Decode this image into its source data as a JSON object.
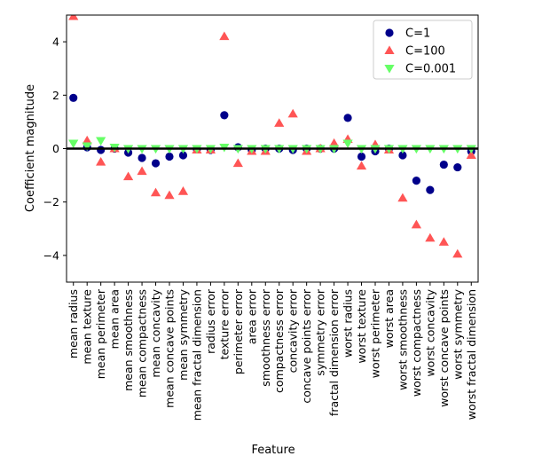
{
  "chart_data": {
    "type": "scatter",
    "title": "",
    "xlabel": "Feature",
    "ylabel": "Coefficient magnitude",
    "ylim": [
      -5,
      5
    ],
    "yticks": [
      4,
      2,
      0,
      -2,
      -4
    ],
    "grid": false,
    "legend_position": "top-right",
    "reference_line": 0,
    "categories": [
      "mean radius",
      "mean texture",
      "mean perimeter",
      "mean area",
      "mean smoothness",
      "mean compactness",
      "mean concavity",
      "mean concave points",
      "mean symmetry",
      "mean fractal dimension",
      "radius error",
      "texture error",
      "perimeter error",
      "area error",
      "smoothness error",
      "compactness error",
      "concavity error",
      "concave points error",
      "symmetry error",
      "fractal dimension error",
      "worst radius",
      "worst texture",
      "worst perimeter",
      "worst area",
      "worst smoothness",
      "worst compactness",
      "worst concavity",
      "worst concave points",
      "worst symmetry",
      "worst fractal dimension"
    ],
    "series": [
      {
        "name": "C=1",
        "marker": "circle",
        "color": "#00008b",
        "values": [
          1.9,
          0.05,
          -0.05,
          0.0,
          -0.15,
          -0.35,
          -0.55,
          -0.3,
          -0.25,
          -0.02,
          -0.05,
          1.25,
          0.05,
          -0.05,
          0.0,
          0.0,
          -0.05,
          0.0,
          0.0,
          0.0,
          1.15,
          -0.3,
          -0.1,
          0.0,
          -0.25,
          -1.2,
          -1.55,
          -0.6,
          -0.7,
          -0.1
        ]
      },
      {
        "name": "C=100",
        "marker": "triangle-up",
        "color": "#ff5555",
        "values": [
          4.95,
          0.3,
          -0.5,
          0.0,
          -1.05,
          -0.85,
          -1.65,
          -1.75,
          -1.6,
          -0.05,
          -0.05,
          4.2,
          -0.55,
          -0.1,
          -0.1,
          0.95,
          1.3,
          -0.1,
          0.0,
          0.2,
          0.35,
          -0.65,
          0.15,
          -0.05,
          -1.85,
          -2.85,
          -3.35,
          -3.5,
          -3.95,
          -0.25
        ]
      },
      {
        "name": "C=0.001",
        "marker": "triangle-down",
        "color": "#66ff66",
        "values": [
          0.2,
          0.1,
          0.3,
          0.05,
          0.0,
          0.0,
          0.0,
          0.0,
          0.0,
          0.0,
          0.0,
          0.05,
          0.0,
          0.0,
          0.0,
          0.0,
          0.0,
          0.0,
          0.0,
          0.0,
          0.2,
          0.0,
          0.0,
          0.0,
          0.0,
          0.0,
          0.0,
          0.0,
          0.0,
          0.0
        ]
      }
    ]
  }
}
